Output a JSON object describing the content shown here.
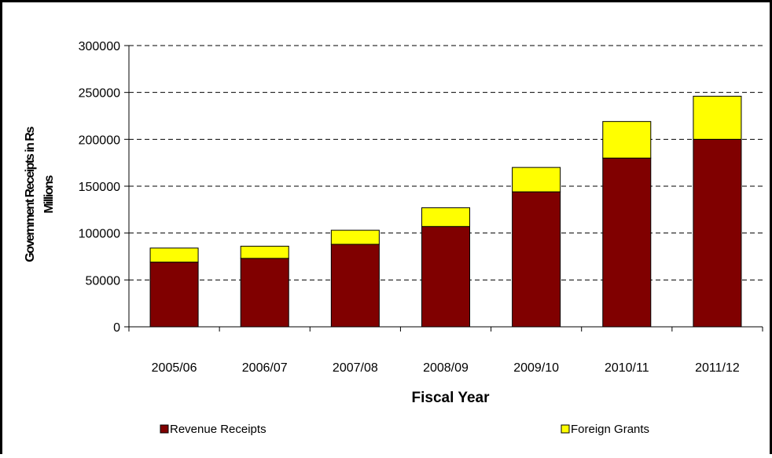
{
  "chart_data": {
    "type": "bar",
    "stacked": true,
    "categories": [
      "2005/06",
      "2006/07",
      "2007/08",
      "2008/09",
      "2009/10",
      "2010/11",
      "2011/12"
    ],
    "series": [
      {
        "name": "Revenue Receipts",
        "color": "#800000",
        "values": [
          69000,
          73000,
          88000,
          107000,
          144000,
          180000,
          200000
        ]
      },
      {
        "name": "Foreign Grants",
        "color": "#ffff00",
        "values": [
          15000,
          13000,
          15000,
          20000,
          26000,
          39000,
          46000
        ]
      }
    ],
    "xlabel": "Fiscal Year",
    "ylabel_lines": [
      "Government Receipts in Rs",
      "Millions"
    ],
    "ylim": [
      0,
      300000
    ],
    "yticks": [
      0,
      50000,
      100000,
      150000,
      200000,
      250000,
      300000
    ],
    "ytick_labels": [
      "0",
      "50000",
      "100000",
      "150000",
      "200000",
      "250000",
      "300000"
    ],
    "grid": "dashed horizontal",
    "legend_position": "bottom"
  }
}
